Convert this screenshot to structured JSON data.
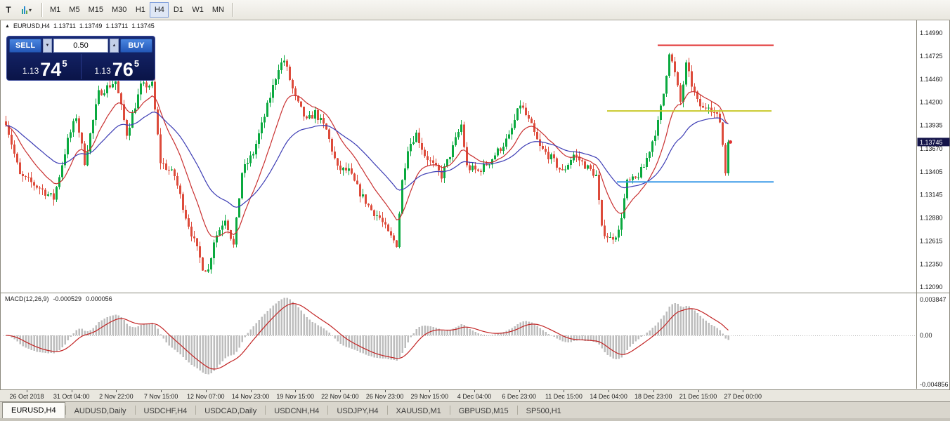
{
  "toolbar": {
    "icon1_glyph": "T",
    "dropdown_caret": "▾",
    "timeframes": [
      {
        "label": "M1",
        "active": false
      },
      {
        "label": "M5",
        "active": false
      },
      {
        "label": "M15",
        "active": false
      },
      {
        "label": "M30",
        "active": false
      },
      {
        "label": "H1",
        "active": false
      },
      {
        "label": "H4",
        "active": true
      },
      {
        "label": "D1",
        "active": false
      },
      {
        "label": "W1",
        "active": false
      },
      {
        "label": "MN",
        "active": false
      }
    ]
  },
  "chart_header": {
    "marker": "▲",
    "symbol": "EURUSD,H4",
    "open": "1.13711",
    "high": "1.13749",
    "low": "1.13711",
    "close": "1.13745"
  },
  "trade_panel": {
    "sell_label": "SELL",
    "buy_label": "BUY",
    "volume": "0.50",
    "spin_down": "▼",
    "spin_up": "▲",
    "bid": {
      "prefix": "1.13",
      "big": "74",
      "sup": "5"
    },
    "ask": {
      "prefix": "1.13",
      "big": "76",
      "sup": "5"
    }
  },
  "price_axis": {
    "ticks": [
      "1.14990",
      "1.14725",
      "1.14460",
      "1.14200",
      "1.13935",
      "1.13670",
      "1.13405",
      "1.13145",
      "1.12880",
      "1.12615",
      "1.12350",
      "1.12090"
    ],
    "current_price": "1.13745"
  },
  "macd_panel": {
    "label": "MACD(12,26,9)",
    "value_main": "-0.000529",
    "value_signal": "0.000056",
    "ticks": [
      "0.003847",
      "0.00",
      "-0.004856"
    ]
  },
  "time_axis": {
    "labels": [
      "26 Oct 2018",
      "31 Oct 04:00",
      "2 Nov 22:00",
      "7 Nov 15:00",
      "12 Nov 07:00",
      "14 Nov 23:00",
      "19 Nov 15:00",
      "22 Nov 04:00",
      "26 Nov 23:00",
      "29 Nov 15:00",
      "4 Dec 04:00",
      "6 Dec 23:00",
      "11 Dec 15:00",
      "14 Dec 04:00",
      "18 Dec 23:00",
      "21 Dec 15:00",
      "27 Dec 00:00"
    ]
  },
  "tabs": [
    {
      "label": "EURUSD,H4",
      "active": true
    },
    {
      "label": "AUDUSD,Daily",
      "active": false
    },
    {
      "label": "USDCHF,H4",
      "active": false
    },
    {
      "label": "USDCAD,Daily",
      "active": false
    },
    {
      "label": "USDCNH,H4",
      "active": false
    },
    {
      "label": "USDJPY,H4",
      "active": false
    },
    {
      "label": "XAUUSD,M1",
      "active": false
    },
    {
      "label": "GBPUSD,M15",
      "active": false
    },
    {
      "label": "SP500,H1",
      "active": false
    }
  ],
  "chart_data": {
    "type": "candlestick",
    "symbol": "EURUSD",
    "timeframe": "H4",
    "title": "EURUSD,H4",
    "ylim": [
      1.12026,
      1.15134
    ],
    "yticks": [
      1.1499,
      1.14725,
      1.1446,
      1.142,
      1.13935,
      1.1367,
      1.13405,
      1.13145,
      1.1288,
      1.12615,
      1.1235,
      1.1209
    ],
    "candle_count": 258,
    "last_close": 1.13745,
    "close_waypoints": [
      [
        0,
        1.1398
      ],
      [
        5,
        1.1336
      ],
      [
        12,
        1.1322
      ],
      [
        17,
        1.131
      ],
      [
        22,
        1.1376
      ],
      [
        25,
        1.1404
      ],
      [
        28,
        1.1352
      ],
      [
        33,
        1.143
      ],
      [
        39,
        1.1444
      ],
      [
        43,
        1.1384
      ],
      [
        48,
        1.1438
      ],
      [
        52,
        1.144
      ],
      [
        55,
        1.1352
      ],
      [
        60,
        1.1336
      ],
      [
        64,
        1.129
      ],
      [
        70,
        1.1232
      ],
      [
        72,
        1.1228
      ],
      [
        74,
        1.1262
      ],
      [
        78,
        1.1288
      ],
      [
        81,
        1.1256
      ],
      [
        84,
        1.134
      ],
      [
        88,
        1.1362
      ],
      [
        92,
        1.1404
      ],
      [
        97,
        1.146
      ],
      [
        99,
        1.1468
      ],
      [
        103,
        1.1424
      ],
      [
        107,
        1.1398
      ],
      [
        110,
        1.1408
      ],
      [
        114,
        1.1388
      ],
      [
        118,
        1.1344
      ],
      [
        122,
        1.1341
      ],
      [
        126,
        1.1316
      ],
      [
        130,
        1.1297
      ],
      [
        133,
        1.1288
      ],
      [
        136,
        1.127
      ],
      [
        139,
        1.1258
      ],
      [
        141,
        1.133
      ],
      [
        143,
        1.1368
      ],
      [
        146,
        1.1384
      ],
      [
        149,
        1.136
      ],
      [
        152,
        1.1348
      ],
      [
        155,
        1.1336
      ],
      [
        159,
        1.1368
      ],
      [
        162,
        1.1394
      ],
      [
        164,
        1.1346
      ],
      [
        168,
        1.1341
      ],
      [
        172,
        1.1352
      ],
      [
        176,
        1.1368
      ],
      [
        179,
        1.138
      ],
      [
        183,
        1.1418
      ],
      [
        187,
        1.1392
      ],
      [
        190,
        1.1368
      ],
      [
        194,
        1.1356
      ],
      [
        198,
        1.134
      ],
      [
        202,
        1.136
      ],
      [
        206,
        1.1348
      ],
      [
        210,
        1.1336
      ],
      [
        212,
        1.1275
      ],
      [
        215,
        1.1264
      ],
      [
        218,
        1.1272
      ],
      [
        221,
        1.1328
      ],
      [
        224,
        1.1332
      ],
      [
        227,
        1.1346
      ],
      [
        230,
        1.1376
      ],
      [
        232,
        1.1396
      ],
      [
        234,
        1.143
      ],
      [
        236,
        1.1478
      ],
      [
        238,
        1.1452
      ],
      [
        240,
        1.142
      ],
      [
        242,
        1.1462
      ],
      [
        244,
        1.144
      ],
      [
        246,
        1.142
      ],
      [
        248,
        1.1412
      ],
      [
        250,
        1.1418
      ],
      [
        252,
        1.1408
      ],
      [
        254,
        1.1398
      ],
      [
        255,
        1.1372
      ],
      [
        256,
        1.134
      ],
      [
        257,
        1.13745
      ]
    ],
    "noise": {
      "seed": 7,
      "close_amp": 0.00045,
      "wick_amp": 0.0007
    },
    "moving_averages": [
      {
        "period": 13,
        "color": "#c93030",
        "type": "ema"
      },
      {
        "period": 34,
        "color": "#3c3cb4",
        "type": "ema"
      }
    ],
    "hlines": [
      {
        "name": "resistance-line",
        "color": "#e03131",
        "price": 1.1485,
        "x1": 935,
        "x2": 1100
      },
      {
        "name": "pivot-line",
        "color": "#c9c92b",
        "price": 1.141,
        "x1": 863,
        "x2": 1097
      },
      {
        "name": "support-line",
        "color": "#3f9ce8",
        "price": 1.1329,
        "x1": 877,
        "x2": 1100
      }
    ],
    "macd": {
      "fast": 12,
      "slow": 26,
      "signal": 9,
      "axis_values": [
        0.003847,
        0.0,
        -0.004856
      ]
    },
    "colors": {
      "up": "#0aa93f",
      "down": "#dd4b3b",
      "macd_hist": "#bdbdbd",
      "macd_signal": "#c22424",
      "badge_bg": "#15154a",
      "badge_text": "#ffffff",
      "axis_text": "#1a1a1a",
      "frame": "#8a887c"
    }
  }
}
